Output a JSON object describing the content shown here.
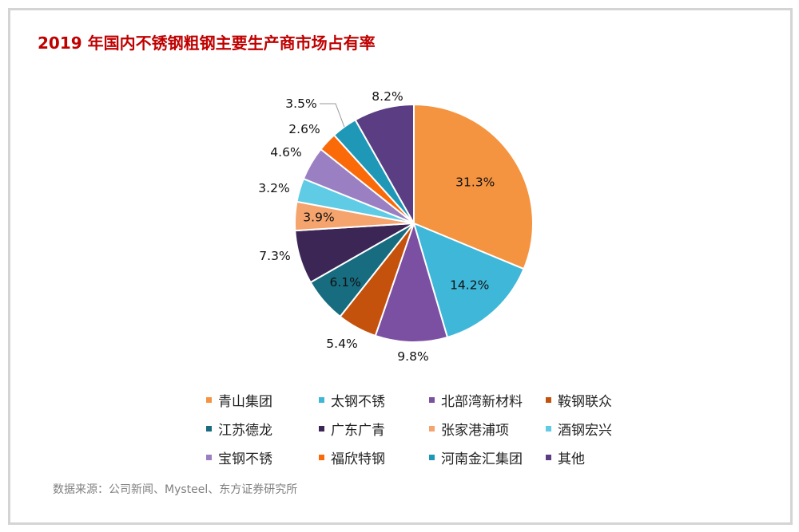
{
  "title": "2019 年国内不锈钢粗钢主要生产商市场占有率",
  "source": "数据来源：公司新闻、Mysteel、东方证券研究所",
  "chart_data": {
    "type": "pie",
    "title": "2019 年国内不锈钢粗钢主要生产商市场占有率",
    "series": [
      {
        "label": "青山集团",
        "value": 31.3,
        "display": "31.3%",
        "color": "#f59440"
      },
      {
        "label": "太钢不锈",
        "value": 14.2,
        "display": "14.2%",
        "color": "#3fb7d9"
      },
      {
        "label": "北部湾新材料",
        "value": 9.8,
        "display": "9.8%",
        "color": "#7b4fa2"
      },
      {
        "label": "鞍钢联众",
        "value": 5.4,
        "display": "5.4%",
        "color": "#c4520c"
      },
      {
        "label": "江苏德龙",
        "value": 6.1,
        "display": "6.1%",
        "color": "#176c80"
      },
      {
        "label": "广东广青",
        "value": 7.3,
        "display": "7.3%",
        "color": "#3c2656"
      },
      {
        "label": "张家港浦项",
        "value": 3.9,
        "display": "3.9%",
        "color": "#f5a46e"
      },
      {
        "label": "酒钢宏兴",
        "value": 3.2,
        "display": "3.2%",
        "color": "#5fcbe5"
      },
      {
        "label": "宝钢不锈",
        "value": 4.6,
        "display": "4.6%",
        "color": "#9a80c2"
      },
      {
        "label": "福欣特钢",
        "value": 2.6,
        "display": "2.6%",
        "color": "#fb6a08"
      },
      {
        "label": "河南金汇集团",
        "value": 3.5,
        "display": "3.5%",
        "color": "#1f98b8"
      },
      {
        "label": "其他",
        "value": 8.2,
        "display": "8.2%",
        "color": "#5a3d82"
      }
    ],
    "legend_placement": "bottom"
  }
}
